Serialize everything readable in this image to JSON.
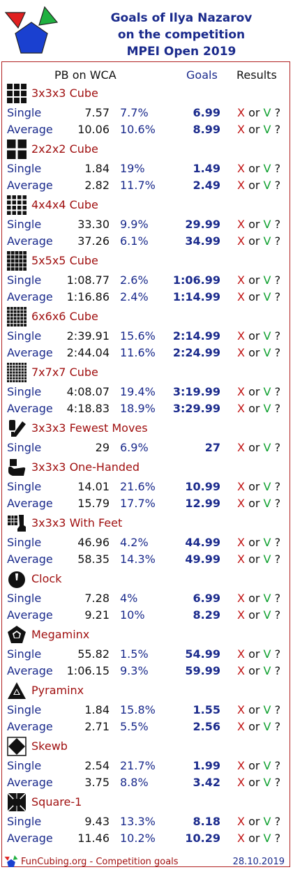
{
  "header": {
    "title_line1": "Goals of Ilya Nazarov",
    "title_line2": "on the competition",
    "title_line3": "MPEI Open 2019"
  },
  "columns": {
    "pb": "PB on WCA",
    "goals": "Goals",
    "results": "Results"
  },
  "result_template": {
    "x": "X",
    "or": "or",
    "v": "V",
    "q": "?"
  },
  "events": [
    {
      "name": "3x3x3 Cube",
      "icon": "cube-3x3-icon",
      "rows": [
        {
          "type": "Single",
          "pb": "7.57",
          "pct": "7.7%",
          "goal": "6.99"
        },
        {
          "type": "Average",
          "pb": "10.06",
          "pct": "10.6%",
          "goal": "8.99"
        }
      ]
    },
    {
      "name": "2x2x2 Cube",
      "icon": "cube-2x2-icon",
      "rows": [
        {
          "type": "Single",
          "pb": "1.84",
          "pct": "19%",
          "goal": "1.49"
        },
        {
          "type": "Average",
          "pb": "2.82",
          "pct": "11.7%",
          "goal": "2.49"
        }
      ]
    },
    {
      "name": "4x4x4 Cube",
      "icon": "cube-4x4-icon",
      "rows": [
        {
          "type": "Single",
          "pb": "33.30",
          "pct": "9.9%",
          "goal": "29.99"
        },
        {
          "type": "Average",
          "pb": "37.26",
          "pct": "6.1%",
          "goal": "34.99"
        }
      ]
    },
    {
      "name": "5x5x5 Cube",
      "icon": "cube-5x5-icon",
      "rows": [
        {
          "type": "Single",
          "pb": "1:08.77",
          "pct": "2.6%",
          "goal": "1:06.99"
        },
        {
          "type": "Average",
          "pb": "1:16.86",
          "pct": "2.4%",
          "goal": "1:14.99"
        }
      ]
    },
    {
      "name": "6x6x6 Cube",
      "icon": "cube-6x6-icon",
      "rows": [
        {
          "type": "Single",
          "pb": "2:39.91",
          "pct": "15.6%",
          "goal": "2:14.99"
        },
        {
          "type": "Average",
          "pb": "2:44.04",
          "pct": "11.6%",
          "goal": "2:24.99"
        }
      ]
    },
    {
      "name": "7x7x7 Cube",
      "icon": "cube-7x7-icon",
      "rows": [
        {
          "type": "Single",
          "pb": "4:08.07",
          "pct": "19.4%",
          "goal": "3:19.99"
        },
        {
          "type": "Average",
          "pb": "4:18.83",
          "pct": "18.9%",
          "goal": "3:29.99"
        }
      ]
    },
    {
      "name": "3x3x3 Fewest Moves",
      "icon": "fewest-moves-icon",
      "rows": [
        {
          "type": "Single",
          "pb": "29",
          "pct": "6.9%",
          "goal": "27"
        }
      ]
    },
    {
      "name": "3x3x3 One-Handed",
      "icon": "one-handed-icon",
      "rows": [
        {
          "type": "Single",
          "pb": "14.01",
          "pct": "21.6%",
          "goal": "10.99"
        },
        {
          "type": "Average",
          "pb": "15.79",
          "pct": "17.7%",
          "goal": "12.99"
        }
      ]
    },
    {
      "name": "3x3x3 With Feet",
      "icon": "with-feet-icon",
      "rows": [
        {
          "type": "Single",
          "pb": "46.96",
          "pct": "4.2%",
          "goal": "44.99"
        },
        {
          "type": "Average",
          "pb": "58.35",
          "pct": "14.3%",
          "goal": "49.99"
        }
      ]
    },
    {
      "name": "Clock",
      "icon": "clock-icon",
      "rows": [
        {
          "type": "Single",
          "pb": "7.28",
          "pct": "4%",
          "goal": "6.99"
        },
        {
          "type": "Average",
          "pb": "9.21",
          "pct": "10%",
          "goal": "8.29"
        }
      ]
    },
    {
      "name": "Megaminx",
      "icon": "megaminx-icon",
      "rows": [
        {
          "type": "Single",
          "pb": "55.82",
          "pct": "1.5%",
          "goal": "54.99"
        },
        {
          "type": "Average",
          "pb": "1:06.15",
          "pct": "9.3%",
          "goal": "59.99"
        }
      ]
    },
    {
      "name": "Pyraminx",
      "icon": "pyraminx-icon",
      "rows": [
        {
          "type": "Single",
          "pb": "1.84",
          "pct": "15.8%",
          "goal": "1.55"
        },
        {
          "type": "Average",
          "pb": "2.71",
          "pct": "5.5%",
          "goal": "2.56"
        }
      ]
    },
    {
      "name": "Skewb",
      "icon": "skewb-icon",
      "rows": [
        {
          "type": "Single",
          "pb": "2.54",
          "pct": "21.7%",
          "goal": "1.99"
        },
        {
          "type": "Average",
          "pb": "3.75",
          "pct": "8.8%",
          "goal": "3.42"
        }
      ]
    },
    {
      "name": "Square-1",
      "icon": "square-1-icon",
      "rows": [
        {
          "type": "Single",
          "pb": "9.43",
          "pct": "13.3%",
          "goal": "8.18"
        },
        {
          "type": "Average",
          "pb": "11.46",
          "pct": "10.2%",
          "goal": "10.29"
        }
      ]
    }
  ],
  "footer": {
    "site": "FunCubing.org - Competition goals",
    "date": "28.10.2019"
  },
  "colors": {
    "title": "#1a2a8c",
    "event_name": "#a01010",
    "x_mark": "#c01010",
    "v_mark": "#10a030",
    "logo_red": "#e02020",
    "logo_green": "#20b040",
    "logo_blue": "#1a40d0"
  }
}
